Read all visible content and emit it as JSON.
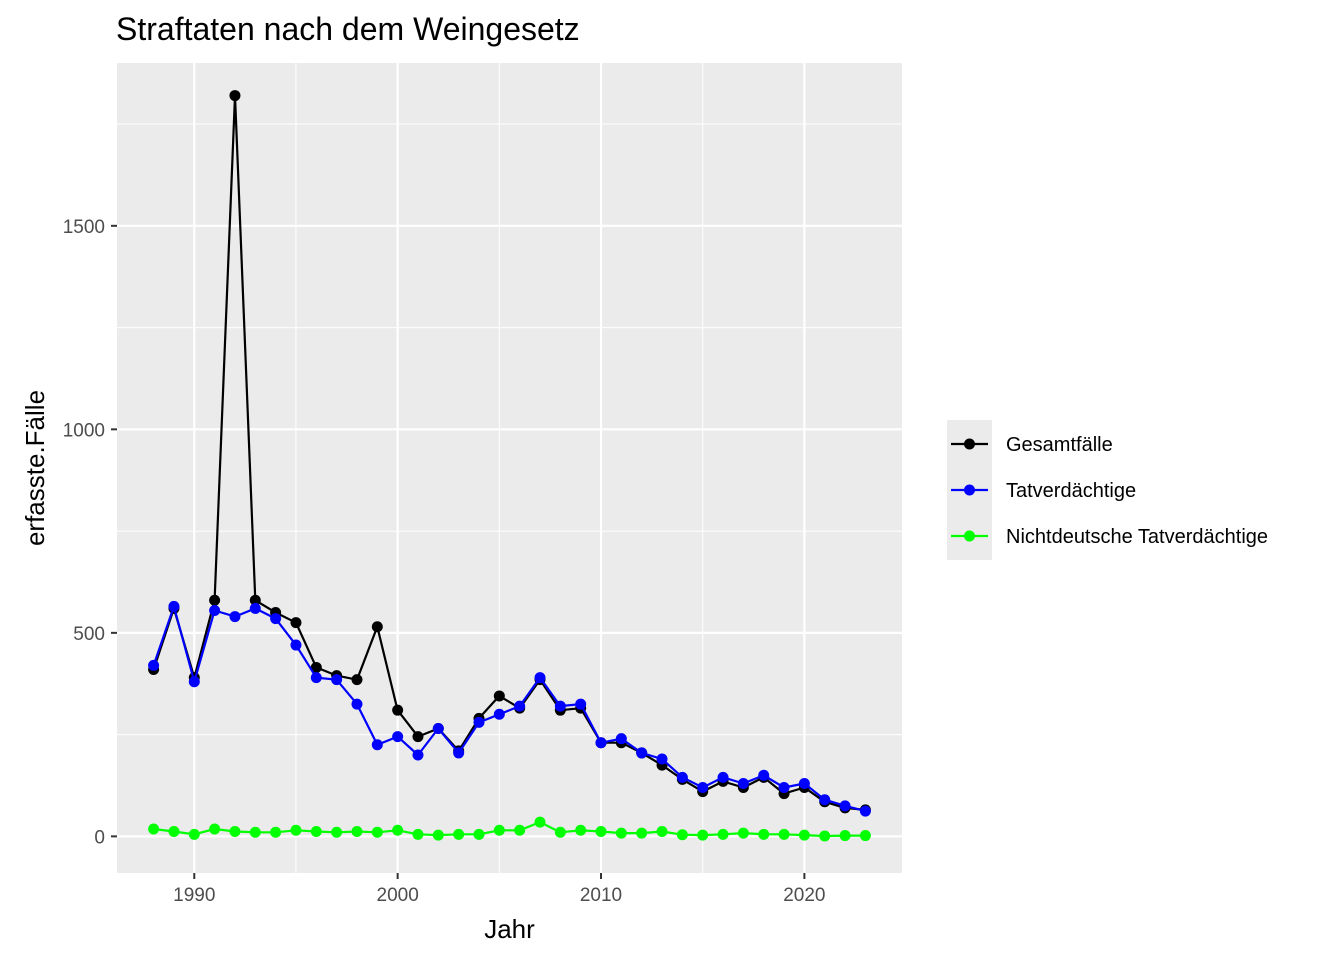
{
  "chart_data": {
    "type": "line",
    "title": "Straftaten nach dem Weingesetz",
    "xlabel": "Jahr",
    "ylabel": "erfasste.Fälle",
    "xlim": [
      1986.2,
      2024.8
    ],
    "ylim": [
      -90,
      1900
    ],
    "x_ticks": [
      1990,
      2000,
      2010,
      2020
    ],
    "y_ticks": [
      0,
      500,
      1000,
      1500
    ],
    "grid": true,
    "legend_position": "right",
    "x": [
      1988,
      1989,
      1990,
      1991,
      1992,
      1993,
      1994,
      1995,
      1996,
      1997,
      1998,
      1999,
      2000,
      2001,
      2002,
      2003,
      2004,
      2005,
      2006,
      2007,
      2008,
      2009,
      2010,
      2011,
      2012,
      2013,
      2014,
      2015,
      2016,
      2017,
      2018,
      2019,
      2020,
      2021,
      2022,
      2023
    ],
    "series": [
      {
        "name": "Gesamtfälle",
        "color": "#000000",
        "values": [
          410,
          560,
          390,
          580,
          1820,
          580,
          550,
          525,
          415,
          395,
          385,
          515,
          310,
          245,
          265,
          210,
          290,
          345,
          315,
          385,
          310,
          315,
          230,
          230,
          205,
          175,
          140,
          110,
          135,
          120,
          145,
          105,
          120,
          85,
          70,
          65
        ]
      },
      {
        "name": "Tatverdächtige",
        "color": "#0000ff",
        "values": [
          420,
          565,
          380,
          555,
          540,
          560,
          535,
          470,
          390,
          385,
          325,
          225,
          245,
          200,
          265,
          205,
          280,
          300,
          320,
          390,
          320,
          325,
          230,
          240,
          205,
          190,
          145,
          120,
          145,
          130,
          150,
          120,
          130,
          90,
          75,
          62
        ]
      },
      {
        "name": "Nichtdeutsche Tatverdächtige",
        "color": "#00ff00",
        "values": [
          18,
          12,
          5,
          18,
          12,
          10,
          10,
          15,
          12,
          10,
          12,
          10,
          15,
          5,
          3,
          5,
          5,
          15,
          15,
          35,
          10,
          15,
          12,
          8,
          8,
          12,
          4,
          3,
          5,
          8,
          5,
          5,
          3,
          1,
          2,
          2
        ]
      }
    ]
  }
}
